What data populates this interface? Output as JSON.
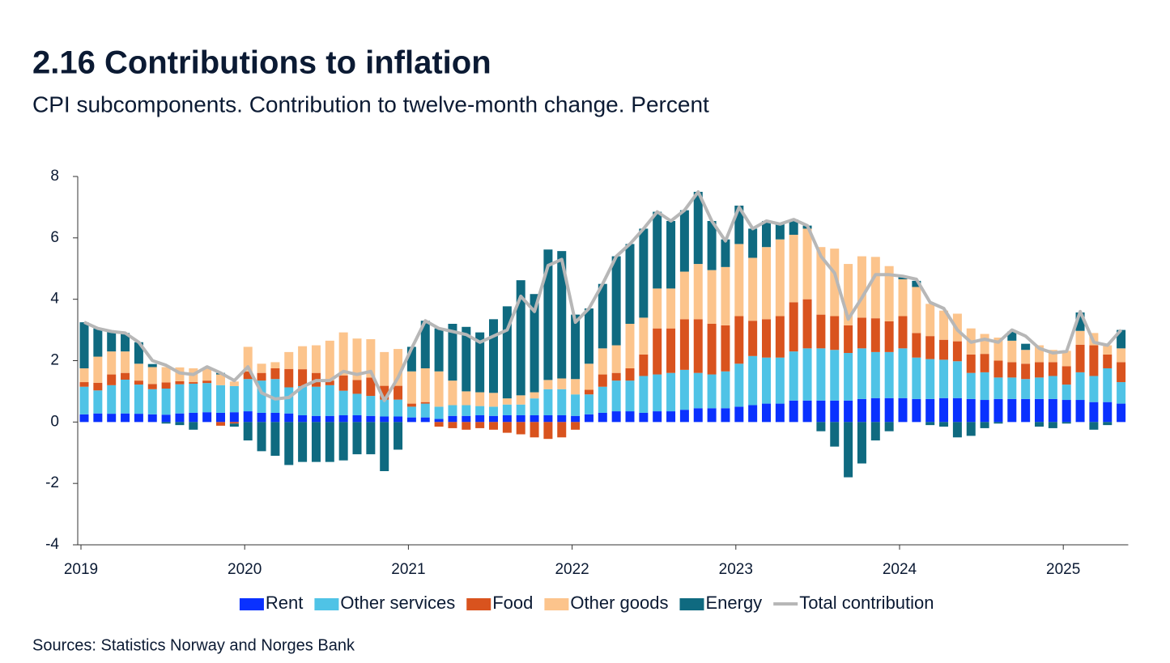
{
  "chart_data": {
    "type": "bar",
    "stacked": true,
    "title": "2.16 Contributions to inflation",
    "subtitle": "CPI subcomponents. Contribution to twelve-month change. Percent",
    "source": "Sources: Statistics Norway and  Norges Bank",
    "categories": [
      "2019",
      null,
      null,
      null,
      null,
      null,
      null,
      null,
      null,
      null,
      null,
      null,
      "2020",
      null,
      null,
      null,
      null,
      null,
      null,
      null,
      null,
      null,
      null,
      null,
      "2021",
      null,
      null,
      null,
      null,
      null,
      null,
      null,
      null,
      null,
      null,
      null,
      "2022",
      null,
      null,
      null,
      null,
      null,
      null,
      null,
      null,
      null,
      null,
      null,
      "2023",
      null,
      null,
      null,
      null,
      null,
      null,
      null,
      null,
      null,
      null,
      null,
      "2024",
      null,
      null,
      null,
      null,
      null,
      null,
      null,
      null,
      null,
      null,
      null,
      "2025",
      null,
      null,
      null,
      null
    ],
    "ylim": [
      -4,
      8
    ],
    "yticks": [
      -4,
      -2,
      0,
      2,
      4,
      6,
      8
    ],
    "grid": false,
    "series": [
      {
        "name": "Rent",
        "color": "#0a31ff",
        "values": [
          0.25,
          0.28,
          0.27,
          0.28,
          0.27,
          0.25,
          0.24,
          0.28,
          0.3,
          0.32,
          0.3,
          0.32,
          0.35,
          0.3,
          0.3,
          0.28,
          0.22,
          0.2,
          0.2,
          0.22,
          0.22,
          0.2,
          0.18,
          0.18,
          0.15,
          0.15,
          0.1,
          0.2,
          0.2,
          0.22,
          0.2,
          0.22,
          0.22,
          0.22,
          0.22,
          0.22,
          0.2,
          0.25,
          0.3,
          0.35,
          0.35,
          0.3,
          0.35,
          0.35,
          0.4,
          0.45,
          0.45,
          0.45,
          0.5,
          0.55,
          0.6,
          0.6,
          0.7,
          0.7,
          0.7,
          0.7,
          0.7,
          0.75,
          0.78,
          0.78,
          0.78,
          0.75,
          0.75,
          0.78,
          0.78,
          0.75,
          0.72,
          0.75,
          0.75,
          0.75,
          0.75,
          0.75,
          0.72,
          0.72,
          0.65,
          0.65,
          0.6
        ]
      },
      {
        "name": "Other services",
        "color": "#4fc3e6",
        "values": [
          0.9,
          0.75,
          0.93,
          1.1,
          0.95,
          0.82,
          0.85,
          0.95,
          0.95,
          0.95,
          0.9,
          0.85,
          1.05,
          1.05,
          1.1,
          0.85,
          0.95,
          0.95,
          1.0,
          0.8,
          0.7,
          0.65,
          0.55,
          0.55,
          0.35,
          0.45,
          0.4,
          0.35,
          0.35,
          0.3,
          0.3,
          0.35,
          0.35,
          0.55,
          0.85,
          0.85,
          0.7,
          0.65,
          0.85,
          1.0,
          1.0,
          1.2,
          1.2,
          1.25,
          1.3,
          1.15,
          1.1,
          1.2,
          1.4,
          1.6,
          1.5,
          1.5,
          1.6,
          1.7,
          1.7,
          1.65,
          1.55,
          1.65,
          1.5,
          1.5,
          1.62,
          1.35,
          1.3,
          1.25,
          1.2,
          0.85,
          0.9,
          0.7,
          0.7,
          0.65,
          0.7,
          0.75,
          0.5,
          0.9,
          0.85,
          1.1,
          0.7
        ]
      },
      {
        "name": "Food",
        "color": "#d9531e",
        "values": [
          0.15,
          0.25,
          0.35,
          0.22,
          0.13,
          0.17,
          0.2,
          0.1,
          0.05,
          0.08,
          -0.12,
          -0.05,
          0.25,
          0.25,
          0.35,
          0.6,
          0.55,
          0.45,
          0.15,
          0.5,
          0.45,
          0.6,
          0.45,
          0.45,
          0.1,
          0.05,
          -0.15,
          -0.2,
          -0.25,
          -0.2,
          -0.25,
          -0.35,
          -0.4,
          -0.5,
          -0.55,
          -0.5,
          -0.25,
          0.15,
          0.4,
          0.25,
          0.4,
          0.7,
          1.5,
          1.45,
          1.65,
          1.75,
          1.65,
          1.5,
          1.55,
          1.15,
          1.25,
          1.35,
          1.6,
          1.6,
          1.1,
          1.1,
          0.9,
          1.0,
          1.1,
          1.0,
          1.05,
          0.8,
          0.75,
          0.65,
          0.65,
          0.6,
          0.6,
          0.55,
          0.5,
          0.5,
          0.5,
          0.45,
          0.6,
          0.9,
          1.0,
          0.45,
          0.65
        ]
      },
      {
        "name": "Other goods",
        "color": "#fcc48c",
        "values": [
          0.45,
          0.85,
          0.75,
          0.7,
          0.55,
          0.55,
          0.5,
          0.45,
          0.45,
          0.4,
          0.35,
          0.15,
          0.8,
          0.3,
          0.2,
          0.55,
          0.75,
          0.9,
          1.3,
          1.4,
          1.35,
          1.25,
          1.1,
          1.2,
          1.05,
          1.1,
          1.15,
          0.8,
          0.45,
          0.45,
          0.45,
          0.2,
          0.3,
          0.2,
          0.3,
          0.35,
          0.5,
          0.85,
          0.85,
          0.9,
          1.45,
          1.2,
          1.3,
          1.3,
          1.55,
          1.8,
          1.75,
          1.9,
          2.35,
          2.05,
          2.35,
          2.5,
          2.2,
          2.3,
          2.2,
          2.2,
          2.0,
          2.0,
          2.0,
          1.8,
          1.2,
          1.5,
          1.05,
          0.95,
          0.9,
          0.85,
          0.65,
          0.75,
          0.7,
          0.45,
          0.55,
          0.4,
          0.5,
          0.45,
          0.4,
          0.3,
          0.45
        ]
      },
      {
        "name": "Energy",
        "color": "#0f6a80",
        "values": [
          1.5,
          0.92,
          0.65,
          0.6,
          0.7,
          0.1,
          -0.05,
          -0.1,
          -0.25,
          0.0,
          0.05,
          -0.1,
          -0.6,
          -0.95,
          -1.1,
          -1.4,
          -1.3,
          -1.3,
          -1.3,
          -1.25,
          -1.05,
          -1.05,
          -1.6,
          -0.9,
          0.8,
          1.55,
          1.4,
          1.85,
          2.1,
          1.95,
          2.4,
          3.0,
          3.75,
          3.2,
          4.25,
          4.15,
          2.1,
          1.8,
          2.1,
          2.9,
          2.6,
          2.9,
          2.5,
          2.2,
          2.0,
          2.35,
          1.6,
          0.9,
          1.25,
          0.95,
          0.85,
          0.5,
          0.5,
          0.1,
          -0.3,
          -0.8,
          -1.8,
          -1.35,
          -0.6,
          -0.3,
          0.1,
          0.2,
          -0.1,
          -0.15,
          -0.5,
          -0.45,
          -0.2,
          -0.05,
          0.3,
          0.2,
          -0.15,
          -0.2,
          -0.05,
          0.6,
          -0.25,
          -0.1,
          0.6
        ]
      }
    ],
    "line": {
      "name": "Total contribution",
      "color": "#b7b7b7",
      "values": [
        3.25,
        3.05,
        2.95,
        2.9,
        2.6,
        2.0,
        1.85,
        1.6,
        1.55,
        1.8,
        1.6,
        1.35,
        1.8,
        0.95,
        0.75,
        0.8,
        1.15,
        1.35,
        1.35,
        1.65,
        1.55,
        1.65,
        0.7,
        1.45,
        2.4,
        3.3,
        3.05,
        2.95,
        2.85,
        2.6,
        2.8,
        3.0,
        4.1,
        3.6,
        5.1,
        5.3,
        3.25,
        3.7,
        4.5,
        5.4,
        5.8,
        6.3,
        6.85,
        6.55,
        6.9,
        7.5,
        6.55,
        5.9,
        7.0,
        6.3,
        6.55,
        6.45,
        6.6,
        6.4,
        5.4,
        4.85,
        3.35,
        4.05,
        4.8,
        4.8,
        4.75,
        4.65,
        3.9,
        3.7,
        3.0,
        2.6,
        2.7,
        2.6,
        3.0,
        2.8,
        2.4,
        2.25,
        2.3,
        3.6,
        2.6,
        2.5,
        3.0
      ]
    }
  }
}
